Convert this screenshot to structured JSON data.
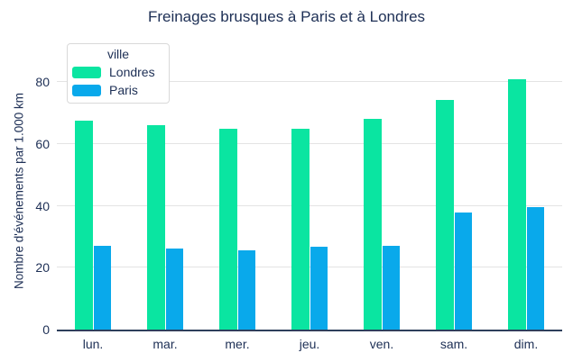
{
  "title": "Freinages brusques à Paris et à Londres",
  "colors": {
    "londres": "#0ae5a1",
    "paris": "#09a9eb",
    "text": "#1d2f55",
    "grid": "#e3e3e3",
    "axis_line": "#2e3f5c",
    "legend_border": "#d9d9d9",
    "background": "#ffffff"
  },
  "legend": {
    "title": "ville",
    "items": [
      {
        "label": "Londres",
        "color": "#0ae5a1"
      },
      {
        "label": "Paris",
        "color": "#09a9eb"
      }
    ]
  },
  "chart_data": {
    "type": "bar",
    "title": "Freinages brusques à Paris et à Londres",
    "categories": [
      "lun.",
      "mar.",
      "mer.",
      "jeu.",
      "ven.",
      "sam.",
      "dim."
    ],
    "series": [
      {
        "name": "Londres",
        "color": "#0ae5a1",
        "values": [
          67.7,
          66.0,
          65.0,
          64.9,
          68.2,
          74.3,
          81.0
        ]
      },
      {
        "name": "Paris",
        "color": "#09a9eb",
        "values": [
          27.1,
          26.3,
          25.6,
          26.9,
          27.2,
          37.8,
          39.6
        ]
      }
    ],
    "xlabel": "",
    "ylabel": "Nombre d'événements par 1.000 km",
    "yticks": [
      0,
      20,
      40,
      60,
      80
    ],
    "ylim": [
      0,
      90
    ],
    "grid": true,
    "legend_title": "ville",
    "legend_position": "top-left"
  }
}
